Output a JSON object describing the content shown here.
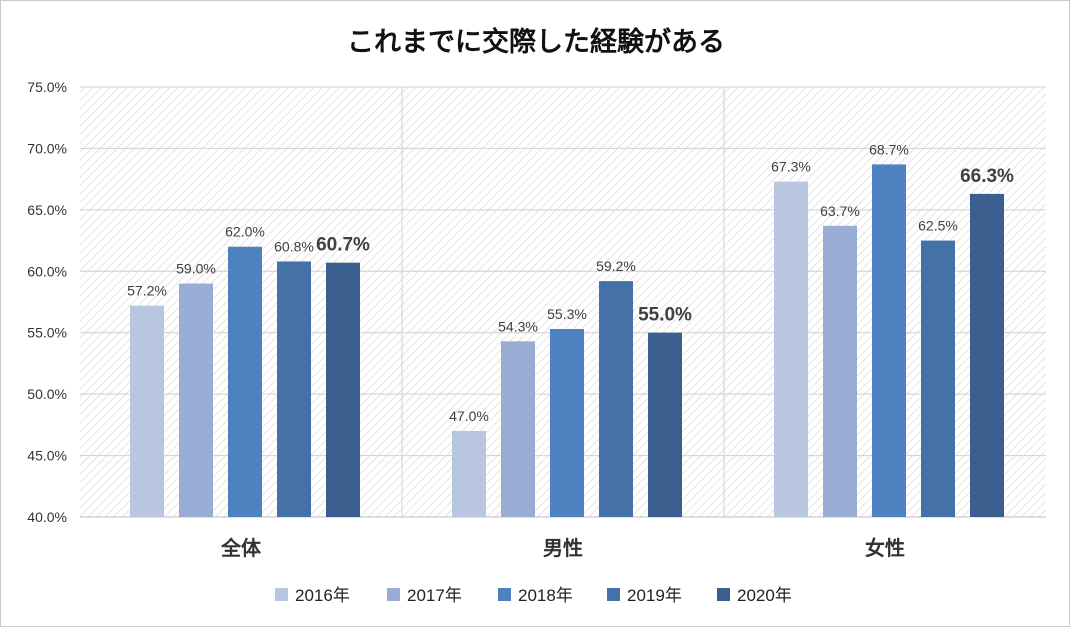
{
  "chart_data": {
    "type": "bar",
    "title": "これまでに交際した経験がある",
    "categories": [
      "全体",
      "男性",
      "女性"
    ],
    "series": [
      {
        "name": "2016年",
        "values": [
          57.2,
          47.0,
          67.3
        ],
        "labels": [
          "57.2%",
          "47.0%",
          "67.3%"
        ],
        "color": "#b9c6e0"
      },
      {
        "name": "2017年",
        "values": [
          59.0,
          54.3,
          63.7
        ],
        "labels": [
          "59.0%",
          "54.3%",
          "63.7%"
        ],
        "color": "#98acd4"
      },
      {
        "name": "2018年",
        "values": [
          62.0,
          55.3,
          68.7
        ],
        "labels": [
          "62.0%",
          "55.3%",
          "68.7%"
        ],
        "color": "#4e81bf"
      },
      {
        "name": "2019年",
        "values": [
          60.8,
          59.2,
          62.5
        ],
        "labels": [
          "60.8%",
          "59.2%",
          "62.5%"
        ],
        "color": "#4472a8"
      },
      {
        "name": "2020年",
        "values": [
          60.7,
          55.0,
          66.3
        ],
        "labels": [
          "60.7%",
          "55.0%",
          "66.3%"
        ],
        "color": "#3a5f8f",
        "bold_labels": true
      }
    ],
    "yticks": [
      "40.0%",
      "45.0%",
      "50.0%",
      "55.0%",
      "60.0%",
      "65.0%",
      "70.0%",
      "75.0%"
    ],
    "ylim": [
      40,
      75
    ],
    "grid": true,
    "legend_position": "bottom"
  }
}
